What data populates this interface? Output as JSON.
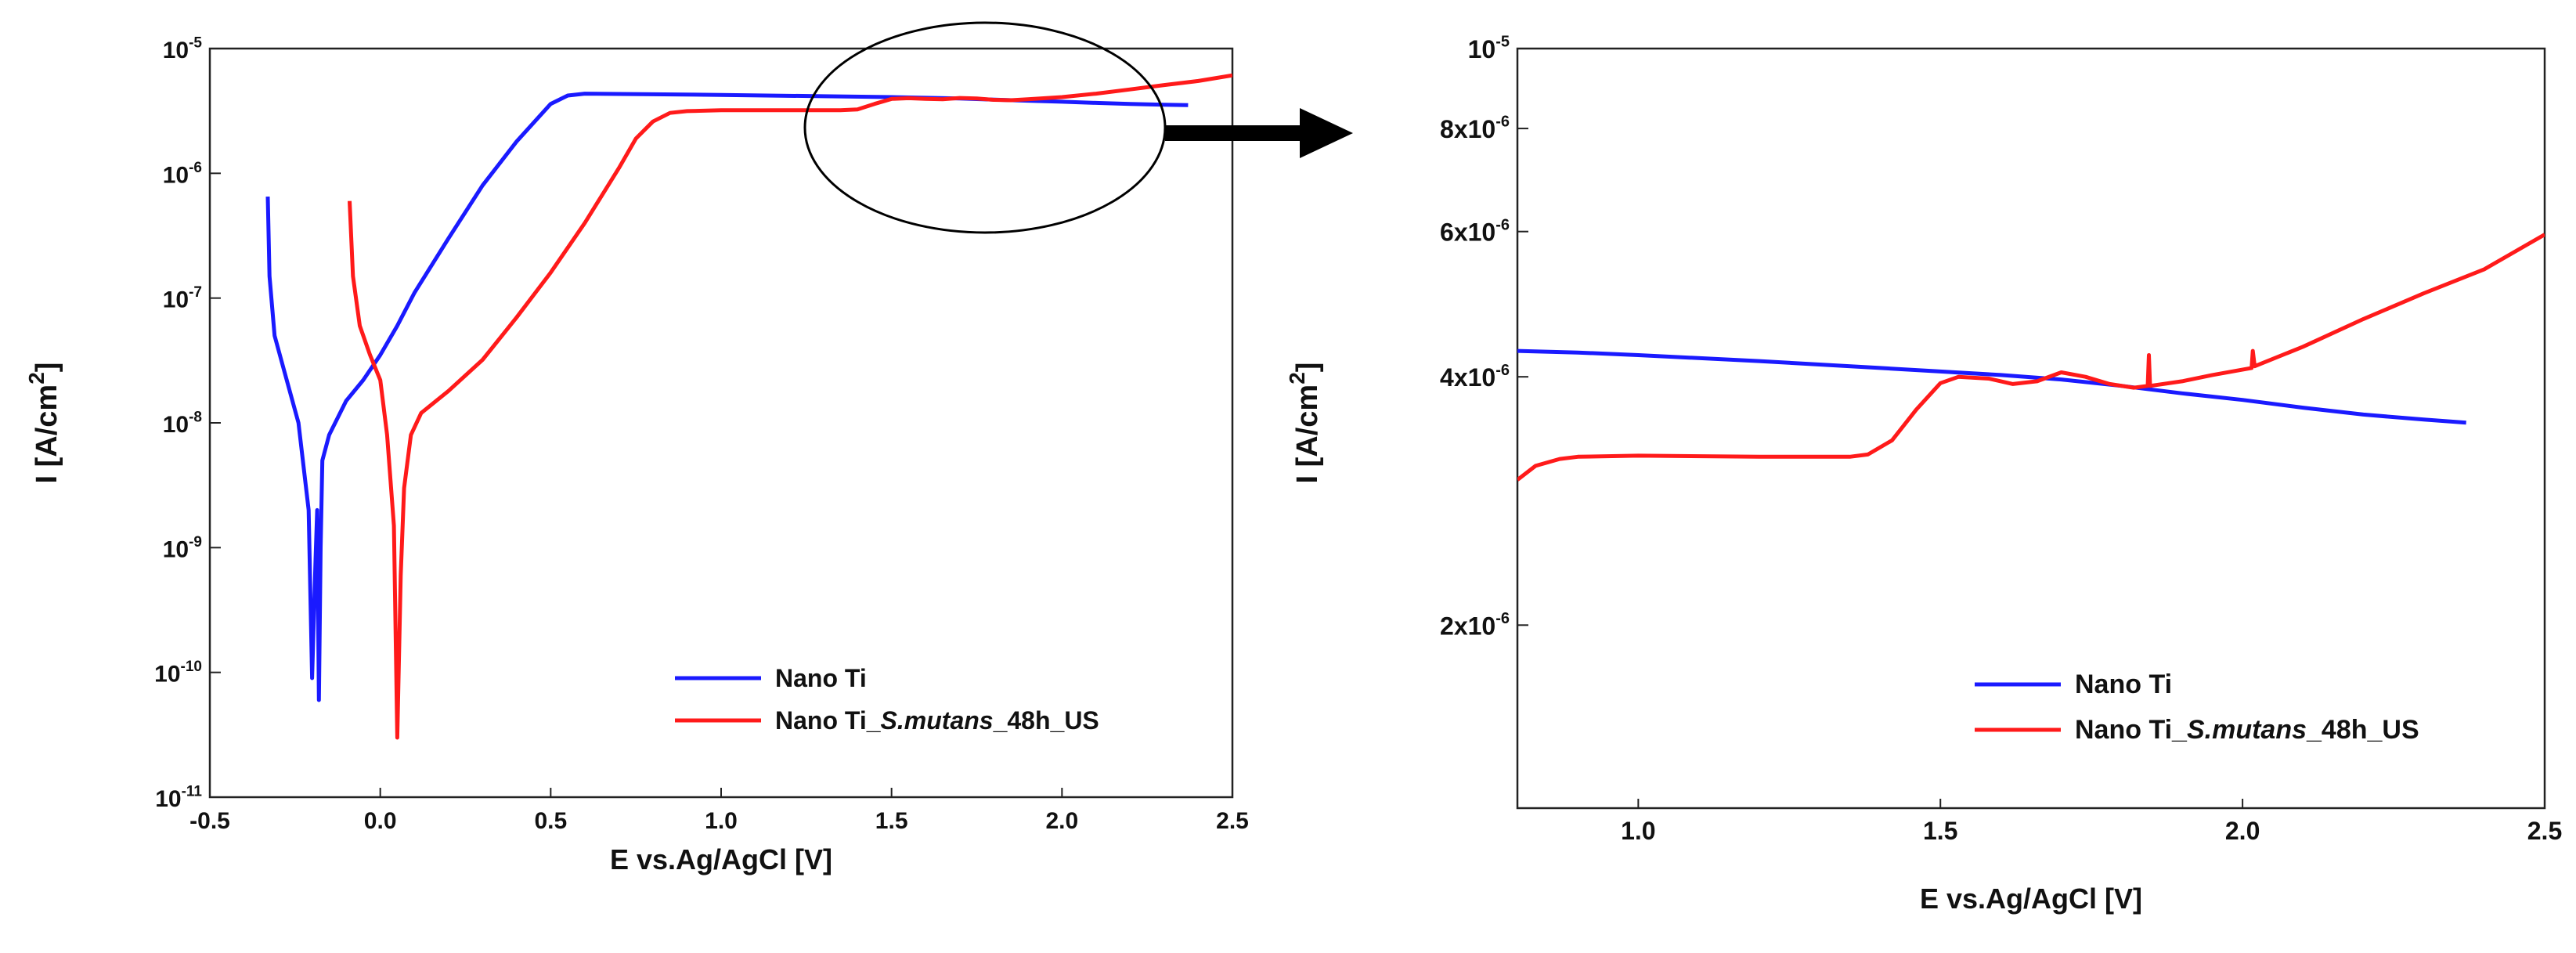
{
  "chart_data": [
    {
      "type": "line",
      "scale_y": "log",
      "xlabel": "E vs.Ag/AgCl [V]",
      "ylabel": "I [A/cm²]",
      "xlim": [
        -0.5,
        2.5
      ],
      "ylim_exp": [
        -11,
        -5
      ],
      "x_ticks": [
        "-0.5",
        "0.0",
        "0.5",
        "1.0",
        "1.5",
        "2.0",
        "2.5"
      ],
      "y_ticks": [
        {
          "base": "10",
          "exp": "-5"
        },
        {
          "base": "10",
          "exp": "-6"
        },
        {
          "base": "10",
          "exp": "-7"
        },
        {
          "base": "10",
          "exp": "-8"
        },
        {
          "base": "10",
          "exp": "-9"
        },
        {
          "base": "10",
          "exp": "-10"
        },
        {
          "base": "10",
          "exp": "-11"
        }
      ],
      "legend_position": "bottom-right",
      "series": [
        {
          "name": "Nano Ti",
          "color": "#1a1aff",
          "points": [
            [
              -0.33,
              6.5e-07
            ],
            [
              -0.325,
              1.5e-07
            ],
            [
              -0.31,
              5e-08
            ],
            [
              -0.28,
              2.5e-08
            ],
            [
              -0.24,
              1e-08
            ],
            [
              -0.21,
              2e-09
            ],
            [
              -0.2,
              9e-11
            ],
            [
              -0.19,
              8e-10
            ],
            [
              -0.185,
              2e-09
            ],
            [
              -0.18,
              6e-11
            ],
            [
              -0.175,
              1e-09
            ],
            [
              -0.17,
              5e-09
            ],
            [
              -0.15,
              8e-09
            ],
            [
              -0.1,
              1.5e-08
            ],
            [
              -0.05,
              2.2e-08
            ],
            [
              0.0,
              3.5e-08
            ],
            [
              0.05,
              6e-08
            ],
            [
              0.1,
              1.1e-07
            ],
            [
              0.2,
              3e-07
            ],
            [
              0.3,
              8e-07
            ],
            [
              0.4,
              1.8e-06
            ],
            [
              0.5,
              3.6e-06
            ],
            [
              0.55,
              4.2e-06
            ],
            [
              0.6,
              4.35e-06
            ],
            [
              0.8,
              4.3e-06
            ],
            [
              1.0,
              4.25e-06
            ],
            [
              1.3,
              4.15e-06
            ],
            [
              1.5,
              4.08e-06
            ],
            [
              1.6,
              4.03e-06
            ],
            [
              1.7,
              3.98e-06
            ],
            [
              1.8,
              3.9e-06
            ],
            [
              1.9,
              3.82e-06
            ],
            [
              2.0,
              3.75e-06
            ],
            [
              2.1,
              3.67e-06
            ],
            [
              2.2,
              3.6e-06
            ],
            [
              2.3,
              3.55e-06
            ],
            [
              2.37,
              3.52e-06
            ]
          ]
        },
        {
          "name": "Nano Ti_S.mutans_48h_US",
          "name_parts": [
            "Nano Ti_",
            "S.mutans",
            "_48h_US"
          ],
          "color": "#ff1a1a",
          "points": [
            [
              -0.09,
              6e-07
            ],
            [
              -0.08,
              1.5e-07
            ],
            [
              -0.06,
              6e-08
            ],
            [
              -0.03,
              3.5e-08
            ],
            [
              0.0,
              2.2e-08
            ],
            [
              0.02,
              8e-09
            ],
            [
              0.04,
              1.5e-09
            ],
            [
              0.05,
              3e-11
            ],
            [
              0.06,
              6e-10
            ],
            [
              0.07,
              3e-09
            ],
            [
              0.09,
              8e-09
            ],
            [
              0.12,
              1.2e-08
            ],
            [
              0.2,
              1.8e-08
            ],
            [
              0.3,
              3.2e-08
            ],
            [
              0.4,
              7e-08
            ],
            [
              0.5,
              1.6e-07
            ],
            [
              0.6,
              4e-07
            ],
            [
              0.7,
              1.1e-06
            ],
            [
              0.75,
              1.9e-06
            ],
            [
              0.8,
              2.6e-06
            ],
            [
              0.85,
              3.05e-06
            ],
            [
              0.9,
              3.15e-06
            ],
            [
              1.0,
              3.2e-06
            ],
            [
              1.2,
              3.2e-06
            ],
            [
              1.35,
              3.2e-06
            ],
            [
              1.4,
              3.25e-06
            ],
            [
              1.45,
              3.6e-06
            ],
            [
              1.5,
              3.95e-06
            ],
            [
              1.55,
              4e-06
            ],
            [
              1.6,
              3.95e-06
            ],
            [
              1.65,
              3.92e-06
            ],
            [
              1.7,
              4.02e-06
            ],
            [
              1.75,
              3.98e-06
            ],
            [
              1.8,
              3.88e-06
            ],
            [
              1.85,
              3.85e-06
            ],
            [
              1.9,
              3.92e-06
            ],
            [
              2.0,
              4.08e-06
            ],
            [
              2.1,
              4.35e-06
            ],
            [
              2.2,
              4.7e-06
            ],
            [
              2.3,
              5.1e-06
            ],
            [
              2.4,
              5.5e-06
            ],
            [
              2.5,
              6.1e-06
            ]
          ]
        }
      ]
    },
    {
      "type": "line",
      "scale_y": "log",
      "xlabel": "E vs.Ag/AgCl [V]",
      "ylabel": "I [A/cm²]",
      "xlim": [
        0.8,
        2.5
      ],
      "ylim": [
        1.2e-06,
        1e-05
      ],
      "x_ticks": [
        {
          "value": 1.0,
          "label": "1.0"
        },
        {
          "value": 1.5,
          "label": "1.5"
        },
        {
          "value": 2.0,
          "label": "2.0"
        },
        {
          "value": 2.5,
          "label": "2.5"
        }
      ],
      "y_ticks": [
        {
          "value": 1e-05,
          "base": "10",
          "exp": "-5"
        },
        {
          "value": 8e-06,
          "base": "8x10",
          "exp": "-6"
        },
        {
          "value": 6e-06,
          "base": "6x10",
          "exp": "-6"
        },
        {
          "value": 4e-06,
          "base": "4x10",
          "exp": "-6"
        },
        {
          "value": 2e-06,
          "base": "2x10",
          "exp": "-6"
        }
      ],
      "legend_position": "bottom-right",
      "series": [
        {
          "name": "Nano Ti",
          "color": "#1a1aff",
          "points": [
            [
              0.8,
              4.3e-06
            ],
            [
              0.9,
              4.28e-06
            ],
            [
              1.0,
              4.25e-06
            ],
            [
              1.2,
              4.18e-06
            ],
            [
              1.4,
              4.1e-06
            ],
            [
              1.5,
              4.06e-06
            ],
            [
              1.6,
              4.02e-06
            ],
            [
              1.7,
              3.97e-06
            ],
            [
              1.8,
              3.9e-06
            ],
            [
              1.9,
              3.82e-06
            ],
            [
              2.0,
              3.75e-06
            ],
            [
              2.1,
              3.67e-06
            ],
            [
              2.2,
              3.6e-06
            ],
            [
              2.3,
              3.55e-06
            ],
            [
              2.37,
              3.52e-06
            ]
          ]
        },
        {
          "name": "Nano Ti_S.mutans_48h_US",
          "name_parts": [
            "Nano Ti_",
            "S.mutans",
            "_48h_US"
          ],
          "color": "#ff1a1a",
          "points": [
            [
              0.8,
              3e-06
            ],
            [
              0.83,
              3.12e-06
            ],
            [
              0.87,
              3.18e-06
            ],
            [
              0.9,
              3.2e-06
            ],
            [
              1.0,
              3.21e-06
            ],
            [
              1.2,
              3.2e-06
            ],
            [
              1.35,
              3.2e-06
            ],
            [
              1.38,
              3.22e-06
            ],
            [
              1.42,
              3.35e-06
            ],
            [
              1.46,
              3.65e-06
            ],
            [
              1.5,
              3.93e-06
            ],
            [
              1.53,
              4e-06
            ],
            [
              1.58,
              3.98e-06
            ],
            [
              1.62,
              3.92e-06
            ],
            [
              1.66,
              3.95e-06
            ],
            [
              1.7,
              4.05e-06
            ],
            [
              1.74,
              4e-06
            ],
            [
              1.78,
              3.92e-06
            ],
            [
              1.82,
              3.88e-06
            ],
            [
              1.843,
              3.9e-06
            ],
            [
              1.845,
              4.25e-06
            ],
            [
              1.847,
              3.9e-06
            ],
            [
              1.9,
              3.95e-06
            ],
            [
              1.95,
              4.02e-06
            ],
            [
              2.015,
              4.1e-06
            ],
            [
              2.017,
              4.3e-06
            ],
            [
              2.02,
              4.12e-06
            ],
            [
              2.1,
              4.35e-06
            ],
            [
              2.2,
              4.7e-06
            ],
            [
              2.3,
              5.05e-06
            ],
            [
              2.4,
              5.4e-06
            ],
            [
              2.5,
              5.95e-06
            ]
          ]
        }
      ]
    }
  ]
}
